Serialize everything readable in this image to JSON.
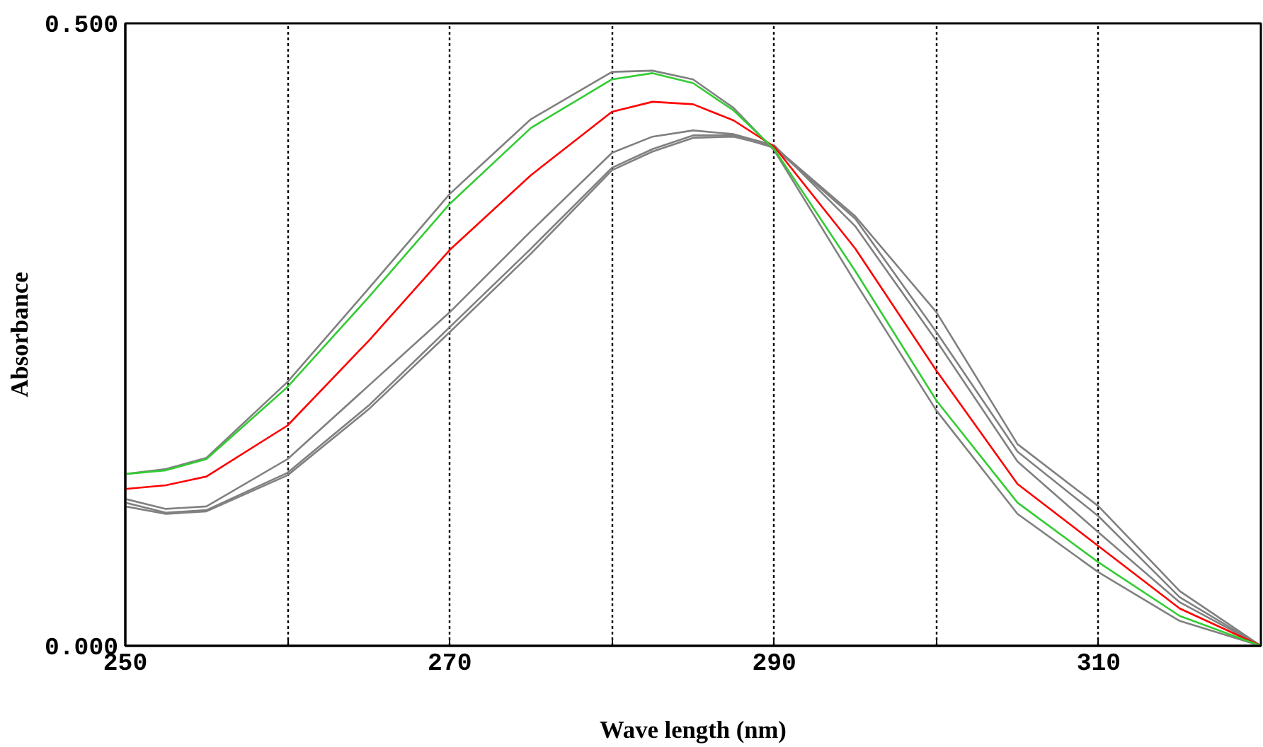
{
  "chart_data": {
    "type": "line",
    "xlabel": "Wave length (nm)",
    "ylabel": "Absorbance",
    "xlim": [
      250,
      320
    ],
    "ylim": [
      0,
      0.5
    ],
    "xticks": [
      250,
      {
        "value": 260,
        "label": null
      },
      270,
      {
        "value": 280,
        "label": null
      },
      290,
      {
        "value": 300,
        "label": null
      },
      310
    ],
    "yticks": [
      {
        "value": 0,
        "label": "0.000"
      },
      {
        "value": 0.5,
        "label": "0.500"
      }
    ],
    "grid": "x",
    "marker": "none",
    "line_style": "solid",
    "x": [
      250,
      252.5,
      255,
      260,
      265,
      270,
      275,
      280,
      282.5,
      285,
      287.5,
      290,
      295,
      300,
      305,
      310,
      315,
      320
    ],
    "series": [
      {
        "color": "#808080",
        "values": [
          0.138,
          0.142,
          0.151,
          0.212,
          0.287,
          0.363,
          0.423,
          0.461,
          0.462,
          0.455,
          0.432,
          0.398,
          0.292,
          0.189,
          0.106,
          0.059,
          0.02,
          0.0
        ]
      },
      {
        "color": "#808080",
        "values": [
          0.118,
          0.11,
          0.112,
          0.15,
          0.209,
          0.268,
          0.333,
          0.396,
          0.409,
          0.414,
          0.411,
          0.402,
          0.337,
          0.245,
          0.148,
          0.091,
          0.035,
          0.0
        ]
      },
      {
        "color": "#808080",
        "values": [
          0.115,
          0.107,
          0.109,
          0.139,
          0.193,
          0.256,
          0.319,
          0.384,
          0.399,
          0.41,
          0.41,
          0.4,
          0.343,
          0.252,
          0.156,
          0.104,
          0.039,
          0.0
        ]
      },
      {
        "color": "#808080",
        "values": [
          0.112,
          0.106,
          0.108,
          0.137,
          0.19,
          0.252,
          0.315,
          0.382,
          0.397,
          0.408,
          0.409,
          0.401,
          0.345,
          0.268,
          0.162,
          0.112,
          0.044,
          0.0
        ]
      },
      {
        "color": "#ff0000",
        "values": [
          0.126,
          0.129,
          0.136,
          0.177,
          0.245,
          0.318,
          0.378,
          0.429,
          0.437,
          0.435,
          0.422,
          0.401,
          0.319,
          0.221,
          0.13,
          0.08,
          0.03,
          0.0
        ]
      },
      {
        "color": "#33cc33",
        "values": [
          0.138,
          0.141,
          0.15,
          0.208,
          0.28,
          0.355,
          0.416,
          0.455,
          0.46,
          0.452,
          0.43,
          0.399,
          0.301,
          0.197,
          0.115,
          0.067,
          0.024,
          0.0
        ]
      }
    ]
  }
}
